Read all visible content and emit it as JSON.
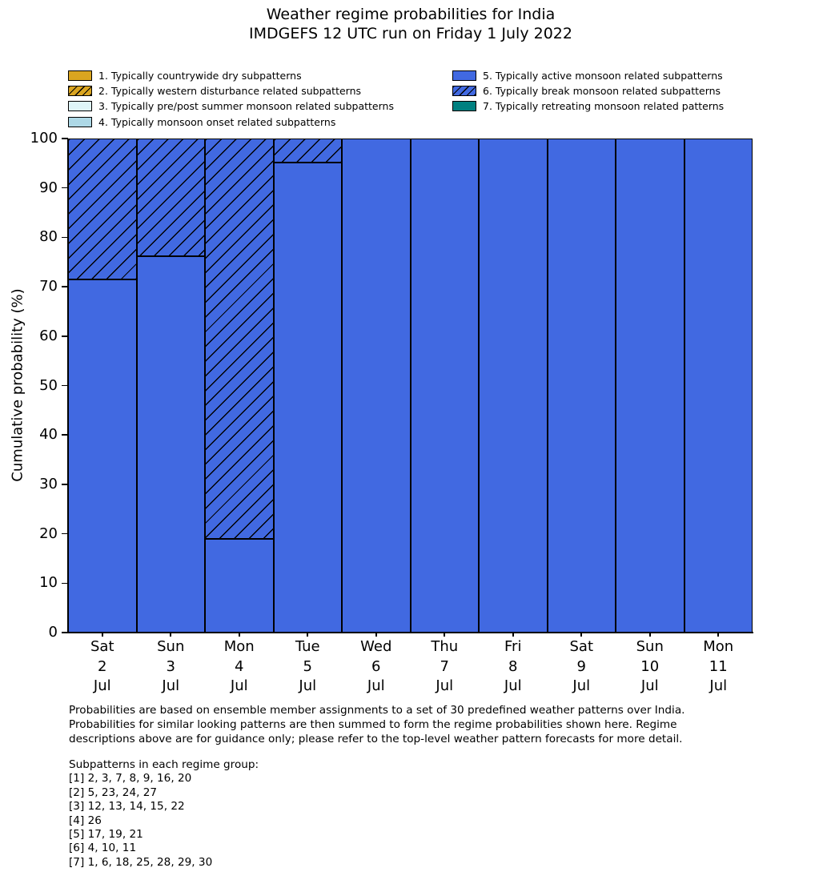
{
  "title": {
    "line1": "Weather regime probabilities for India",
    "line2": "IMDGEFS 12 UTC run on Friday 1 July 2022"
  },
  "legend": {
    "entries": [
      {
        "label": "1. Typically countrywide dry subpatterns",
        "color": "#DAA520",
        "hatch": false
      },
      {
        "label": "2. Typically western disturbance related subpatterns",
        "color": "#DAA520",
        "hatch": true
      },
      {
        "label": "3. Typically pre/post summer monsoon related subpatterns",
        "color": "#DFF5F8",
        "hatch": false
      },
      {
        "label": "4. Typically monsoon onset related subpatterns",
        "color": "#ADD8E6",
        "hatch": false
      },
      {
        "label": "5. Typically active monsoon related subpatterns",
        "color": "#4169E1",
        "hatch": false
      },
      {
        "label": "6. Typically break monsoon related subpatterns",
        "color": "#4169E1",
        "hatch": true
      },
      {
        "label": "7. Typically retreating monsoon related patterns",
        "color": "#008080",
        "hatch": false
      }
    ]
  },
  "chart_data": {
    "type": "bar",
    "stacked": true,
    "title": "Weather regime probabilities for India — IMDGEFS 12 UTC run on Friday 1 July 2022",
    "ylabel": "Cumulative probability (%)",
    "ylim": [
      0,
      100
    ],
    "yticks": [
      0,
      10,
      20,
      30,
      40,
      50,
      60,
      70,
      80,
      90,
      100
    ],
    "grid": false,
    "legend_position": "top",
    "categories": [
      {
        "day": "Sat",
        "date": "2",
        "month": "Jul"
      },
      {
        "day": "Sun",
        "date": "3",
        "month": "Jul"
      },
      {
        "day": "Mon",
        "date": "4",
        "month": "Jul"
      },
      {
        "day": "Tue",
        "date": "5",
        "month": "Jul"
      },
      {
        "day": "Wed",
        "date": "6",
        "month": "Jul"
      },
      {
        "day": "Thu",
        "date": "7",
        "month": "Jul"
      },
      {
        "day": "Fri",
        "date": "8",
        "month": "Jul"
      },
      {
        "day": "Sat",
        "date": "9",
        "month": "Jul"
      },
      {
        "day": "Sun",
        "date": "10",
        "month": "Jul"
      },
      {
        "day": "Mon",
        "date": "11",
        "month": "Jul"
      }
    ],
    "series": [
      {
        "name": "5. Typically active monsoon related subpatterns",
        "color": "#4169E1",
        "hatch": false,
        "values": [
          71.4,
          76.2,
          19.0,
          95.2,
          100,
          100,
          100,
          100,
          100,
          100
        ]
      },
      {
        "name": "6. Typically break monsoon related subpatterns",
        "color": "#4169E1",
        "hatch": true,
        "values": [
          28.6,
          23.8,
          81.0,
          4.8,
          0,
          0,
          0,
          0,
          0,
          0
        ]
      }
    ]
  },
  "footer": {
    "description_lines": [
      "Probabilities are based on ensemble member assignments to a set of 30 predefined weather patterns over India.",
      "Probabilities for similar looking patterns are then summed to form the regime probabilities shown here. Regime",
      "descriptions above are for guidance only; please refer to the top-level weather pattern forecasts for more detail."
    ],
    "subpatterns_header": "Subpatterns in each regime group:",
    "subpattern_groups": [
      "[1] 2, 3, 7, 8, 9, 16, 20",
      "[2] 5, 23, 24, 27",
      "[3] 12, 13, 14, 15, 22",
      "[4] 26",
      "[5] 17, 19, 21",
      "[6] 4, 10, 11",
      "[7] 1, 6, 18, 25, 28, 29, 30"
    ]
  }
}
